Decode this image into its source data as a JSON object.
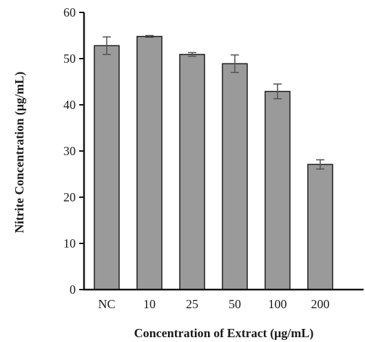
{
  "chart_data": {
    "type": "bar",
    "title": "",
    "xlabel": "Concentration of Extract (μg/mL)",
    "ylabel": "Nitrite Concentration (μg/mL)",
    "categories": [
      "NC",
      "10",
      "25",
      "50",
      "100",
      "200"
    ],
    "values": [
      52.8,
      54.8,
      50.9,
      48.9,
      42.9,
      27.1
    ],
    "errors": [
      1.9,
      0.2,
      0.4,
      1.9,
      1.6,
      1.0
    ],
    "ylim": [
      0,
      60
    ],
    "yticks": [
      0,
      10,
      20,
      30,
      40,
      50,
      60
    ],
    "grid": false,
    "legend": "none",
    "bar_color": "#9a9a9a",
    "bar_edge_color": "#1a1a1a",
    "error_bar_color": "#555555"
  }
}
